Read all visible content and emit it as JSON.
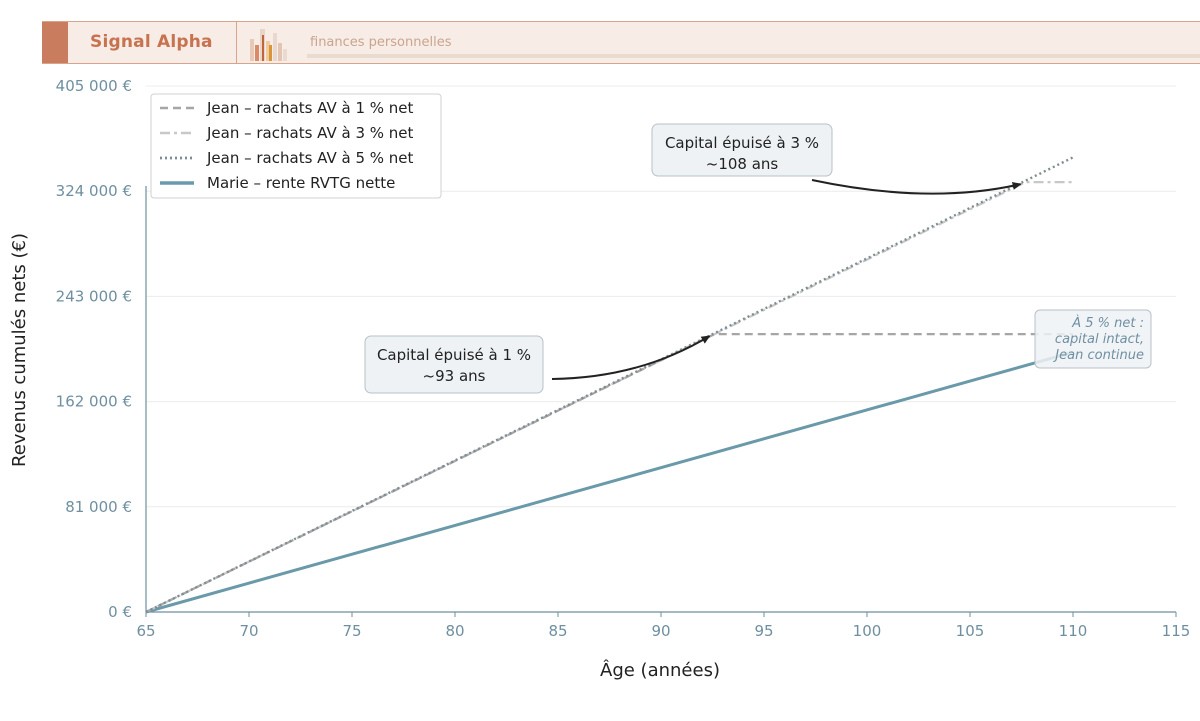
{
  "header": {
    "brand": "Signal Alpha",
    "tagline": "finances personnelles"
  },
  "colors": {
    "brand": "#c8724f",
    "header_bg": "#f7ece6",
    "axis": "#6f8fa1",
    "marie": "#6a9aaa",
    "jean_1": "#a6a6a6",
    "jean_3": "#c8c8c8",
    "jean_5": "#7f8c93"
  },
  "chart_data": {
    "type": "line",
    "xlabel": "Âge (années)",
    "ylabel": "Revenus cumulés nets (€)",
    "xlim": [
      65,
      115
    ],
    "ylim": [
      0,
      405000
    ],
    "xticks": [
      "65",
      "70",
      "75",
      "80",
      "85",
      "90",
      "95",
      "100",
      "105",
      "110",
      "115"
    ],
    "yticks": [
      "0 €",
      "81 000 €",
      "162 000 €",
      "243 000 €",
      "324 000 €",
      "405 000 €"
    ],
    "grid": "horizontal",
    "legend_position": "top-left",
    "series": [
      {
        "name": "Jean – rachats AV à 1 % net",
        "style": "dashed",
        "points": [
          [
            65,
            0
          ],
          [
            92.6,
            214000
          ],
          [
            110,
            214000
          ]
        ]
      },
      {
        "name": "Jean – rachats AV à 3 % net",
        "style": "dashdot",
        "points": [
          [
            65,
            0
          ],
          [
            107.7,
            331000
          ],
          [
            110,
            331000
          ]
        ]
      },
      {
        "name": "Jean – rachats AV à 5 % net",
        "style": "dotted",
        "points": [
          [
            65,
            0
          ],
          [
            110,
            350000
          ]
        ]
      },
      {
        "name": "Marie – rente RVTG nette",
        "style": "solid",
        "points": [
          [
            65,
            0
          ],
          [
            110,
            200000
          ]
        ]
      }
    ],
    "annotations": [
      {
        "line1": "Capital épuisé à 1 %",
        "line2": "~93 ans",
        "target": [
          92.6,
          214000
        ]
      },
      {
        "line1": "Capital épuisé à 3 %",
        "line2": "~108 ans",
        "target": [
          107.7,
          331000
        ]
      }
    ],
    "note": {
      "lines": [
        "À 5 % net :",
        "capital intact,",
        "Jean continue"
      ]
    }
  }
}
